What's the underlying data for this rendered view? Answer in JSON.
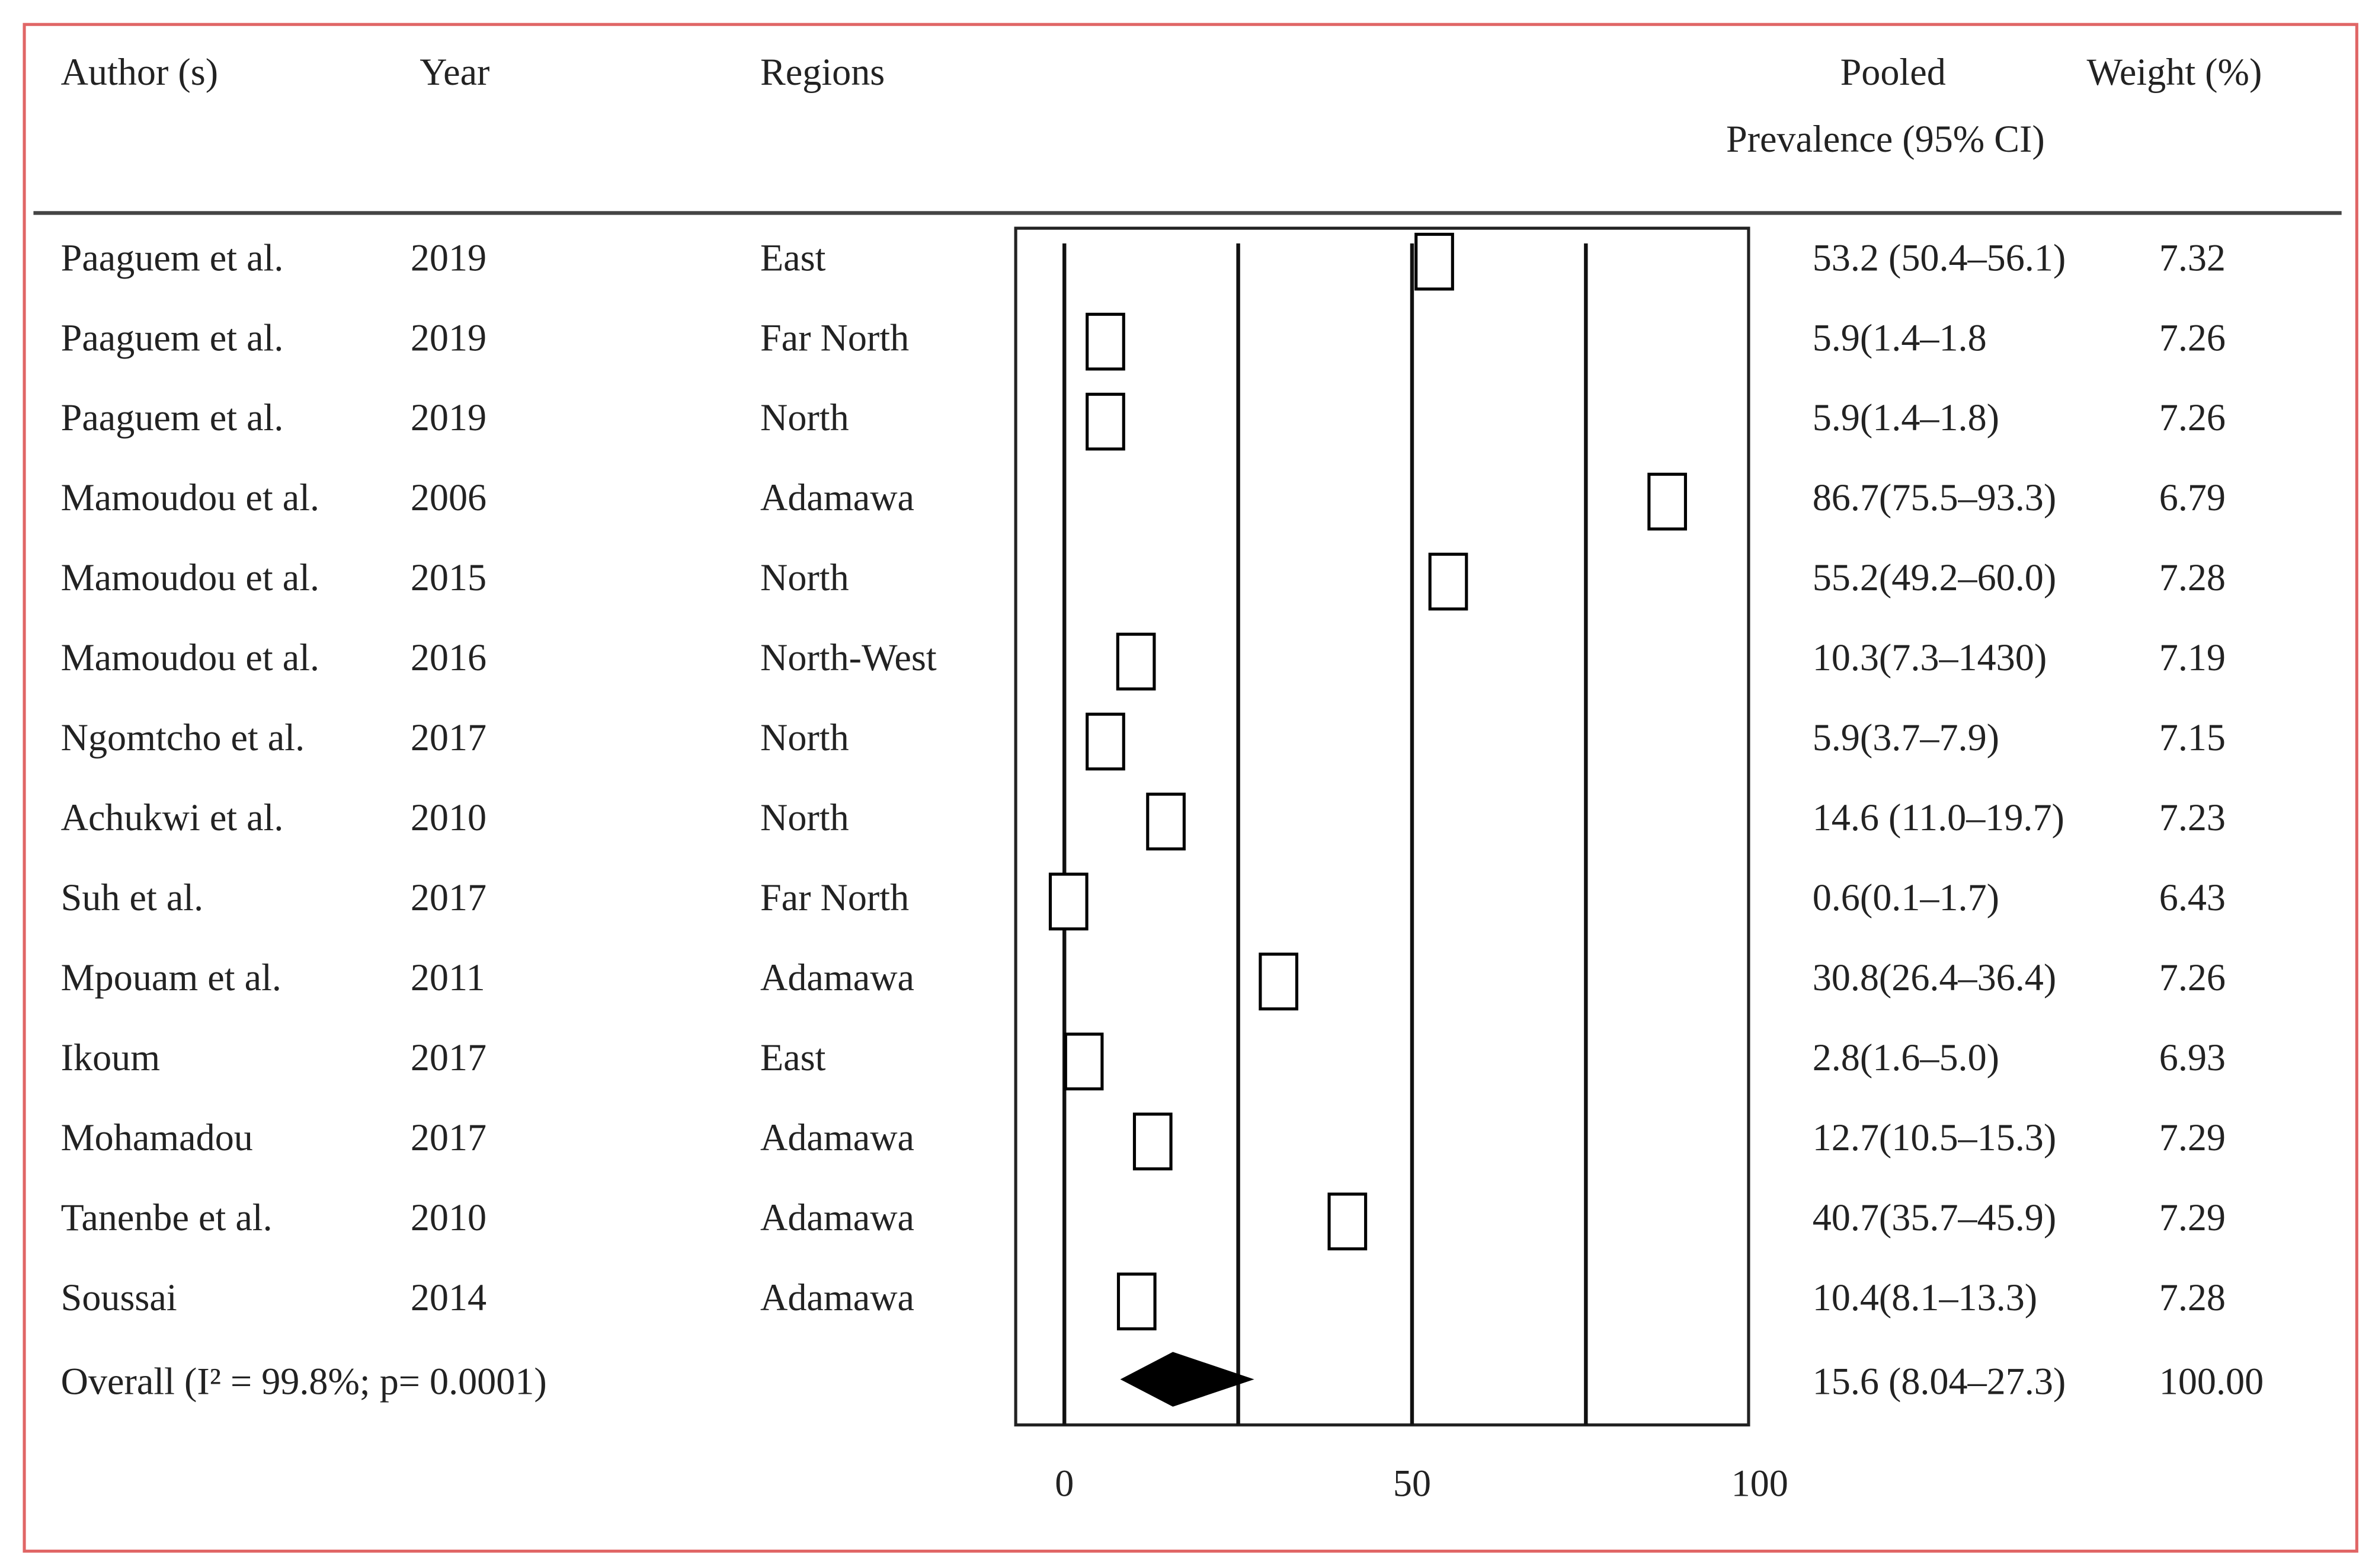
{
  "chart_data": {
    "type": "forest",
    "headers": [
      "Author (s)",
      "Year",
      "Regions",
      "Pooled",
      "Prevalence (95% CI)",
      "Weight (%)"
    ],
    "categories": [
      "Paaguem et al.",
      "Paaguem et al.",
      "Paaguem et al.",
      "Mamoudou et al.",
      "Mamoudou et al.",
      "Mamoudou et al.",
      "Ngomtcho et al.",
      "Achukwi et al.",
      "Suh et al.",
      "Mpouam et al.",
      "Ikoum",
      "Mohamadou",
      "Tanenbe et al.",
      "Soussai"
    ],
    "years": [
      "2019",
      "2019",
      "2019",
      "2006",
      "2015",
      "2016",
      "2017",
      "2010",
      "2017",
      "2011",
      "2017",
      "2017",
      "2010",
      "2014"
    ],
    "regions": [
      "East",
      "Far North",
      "North",
      "Adamawa",
      "North",
      "North-West",
      "North",
      "North",
      "Far North",
      "Adamawa",
      "East",
      "Adamawa",
      "Adamawa",
      "Adamawa"
    ],
    "values": [
      53.2,
      5.9,
      5.9,
      86.7,
      55.2,
      10.3,
      5.9,
      14.6,
      0.6,
      30.8,
      2.8,
      12.7,
      40.7,
      10.4
    ],
    "value_labels": [
      "53.2 (50.4–56.1)",
      "5.9(1.4–1.8",
      "5.9(1.4–1.8)",
      "86.7(75.5–93.3)",
      "55.2(49.2–60.0)",
      "10.3(7.3–1430)",
      "5.9(3.7–7.9)",
      "14.6 (11.0–19.7)",
      "0.6(0.1–1.7)",
      "30.8(26.4–36.4)",
      "2.8(1.6–5.0)",
      "12.7(10.5–15.3)",
      "40.7(35.7–45.9)",
      "10.4(8.1–13.3)"
    ],
    "weights": [
      "7.32",
      "7.26",
      "7.26",
      "6.79",
      "7.28",
      "7.19",
      "7.15",
      "7.23",
      "6.43",
      "7.26",
      "6.93",
      "7.29",
      "7.29",
      "7.28"
    ],
    "overall": {
      "label": "Overall (I² = 99.8%; p= 0.0001)",
      "value": 15.6,
      "lower": 8.04,
      "upper": 27.3,
      "value_label": "15.6 (8.04–27.3)",
      "weight": "100.00"
    },
    "xlim": [
      -7,
      98.4
    ],
    "xticks": [
      0,
      50,
      100
    ],
    "vlines": [
      0,
      25,
      50,
      75
    ],
    "color": "#000000"
  }
}
